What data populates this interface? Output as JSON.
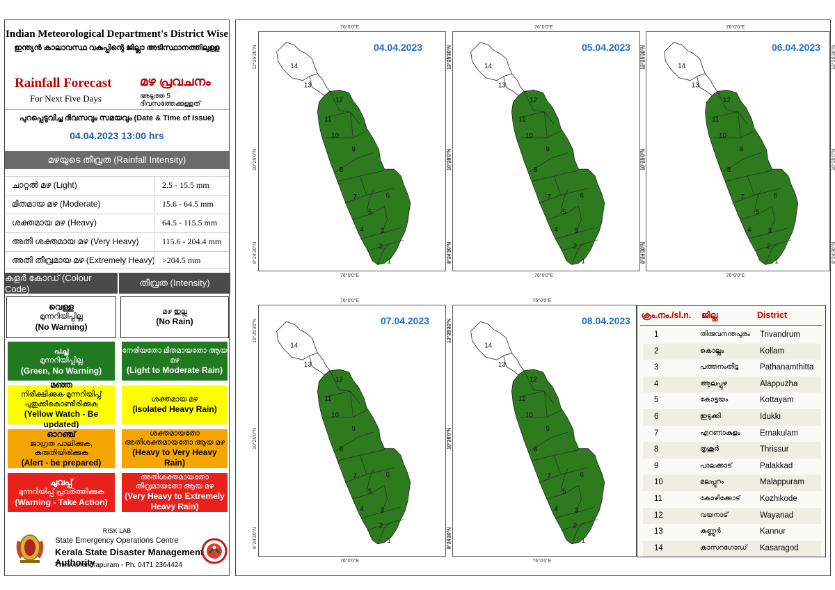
{
  "header": {
    "title_en": "Indian Meteorological Department's District Wise",
    "title_ml": "ഇന്ത്യൻ കാലാവസ്ഥ വകുപ്പിന്റെ ജില്ലാ അടിസ്ഥാനത്തിലുള്ള",
    "forecast_en": "Rainfall Forecast",
    "forecast_ml": "മഴ പ്രവചനം",
    "next_days_en": "For Next Five Days",
    "next_days_ml": "അടുത്ത 5 ദിവസത്തേക്കുള്ളത്",
    "issue_label": "പുറപ്പെടുവിച്ച ദിവസവും സമയവും (Date & Time of Issue)",
    "issue_value": "04.04.2023 13:00 hrs"
  },
  "intensity": {
    "heading": "മഴയുടെ തീവ്രത (Rainfall Intensity)",
    "rows": [
      {
        "label": "ചാറ്റൽ മഴ (Light)",
        "range": "2.5 - 15.5 mm"
      },
      {
        "label": "മിതമായ മഴ (Moderate)",
        "range": "15.6 - 64.5 mm"
      },
      {
        "label": "ശക്തമായ മഴ (Heavy)",
        "range": "64.5 - 115.5 mm"
      },
      {
        "label": "അതി ശക്തമായ മഴ (Very Heavy)",
        "range": "115.6 - 204.4 mm"
      },
      {
        "label": "അതി തീവ്രമായ മഴ (Extremely Heavy)",
        "range": ">204.5 mm"
      }
    ]
  },
  "colour_code": {
    "head_left": "കളർ കോഡ് (Colour Code)",
    "head_right": "തീവ്രത (Intensity)",
    "rows": [
      {
        "color": "#ffffff",
        "fg": "#000000",
        "l1": "വെള്ള",
        "l2": "മുന്നറിയിപ്പില്ല",
        "l3": "(No Warning)",
        "r1": "മഴ ഇല്ല",
        "r2": "(No Rain)"
      },
      {
        "color": "#217a21",
        "fg": "#ffffff",
        "l1": "പച്ച",
        "l2": "മുന്നറിയിപ്പില്ല",
        "l3": "(Green, No Warning)",
        "r1": "നേരിയതോ മിതമായതോ ആയ മഴ",
        "r2": "(Light to Moderate Rain)"
      },
      {
        "color": "#ffff00",
        "fg": "#000000",
        "l1": "മഞ്ഞ",
        "l2": "നിരീക്ഷിക്കുക-മുന്നറിയിപ്പ് പുതുക്കികൊണ്ടിരിക്കുക",
        "l3": "(Yellow Watch - Be updated)",
        "r1": "ശക്തമായ മഴ",
        "r2": "(Isolated Heavy Rain)"
      },
      {
        "color": "#f5a500",
        "fg": "#000000",
        "l1": "ഓറഞ്ച്",
        "l2": "ജാഗ്രത പാലിക്കുക, കരുതിയിരിക്കുക",
        "l3": "(Alert - be prepared)",
        "r1": "ശക്തമായതോ അതിശക്തമായതോ ആയ മഴ",
        "r2": "(Heavy to Very Heavy Rain)"
      },
      {
        "color": "#e8211c",
        "fg": "#ffffff",
        "l1": "ചുവപ്പ്",
        "l2": "മുന്നറിയിപ്പ് പ്രവർത്തിക്കുക",
        "l3": "(Warning - Take Action)",
        "r1": "അതിശക്തമായതോ തീവ്രമായതോ ആയ മഴ",
        "r2": "(Very Heavy to Extremely Heavy Rain)"
      }
    ]
  },
  "footer": {
    "lab": "RISK LAB",
    "centre": "State Emergency Operations Centre",
    "authority": "Kerala State Disaster Management Authority",
    "address": "Thiruvananthapuram - Ph: 0471 2364424"
  },
  "maps": [
    {
      "date": "04.04.2023"
    },
    {
      "date": "05.04.2023"
    },
    {
      "date": "06.04.2023"
    },
    {
      "date": "07.04.2023"
    },
    {
      "date": "08.04.2023"
    }
  ],
  "map_labels": {
    "lon": "76°0'0\"E",
    "lat_top": "12°25'30\"N",
    "lat_mid": "10°25'0\"N",
    "lat_bot": "8°24'30\"N"
  },
  "map_colors": {
    "green": "#2d7a1f",
    "white": "#ffffff",
    "border": "#222222"
  },
  "district_table": {
    "head_no": "ക്രം.നം./sl.n.",
    "head_ml": "ജില്ല",
    "head_en": "District",
    "rows": [
      {
        "no": "1",
        "ml": "തിരുവനന്തപുരം",
        "en": "Trivandrum"
      },
      {
        "no": "2",
        "ml": "കൊല്ലം",
        "en": "Kollam"
      },
      {
        "no": "3",
        "ml": "പത്തനംതിട്ട",
        "en": "Pathanamthitta"
      },
      {
        "no": "4",
        "ml": "ആലപ്പുഴ",
        "en": "Alappuzha"
      },
      {
        "no": "5",
        "ml": "കോട്ടയം",
        "en": "Kottayam"
      },
      {
        "no": "6",
        "ml": "ഇടുക്കി",
        "en": "Idukki"
      },
      {
        "no": "7",
        "ml": "എറണാകുളം",
        "en": "Ernakulam"
      },
      {
        "no": "8",
        "ml": "തൃശൂർ",
        "en": "Thrissur"
      },
      {
        "no": "9",
        "ml": "പാലക്കാട്",
        "en": "Palakkad"
      },
      {
        "no": "10",
        "ml": "മലപ്പുറം",
        "en": "Malappuram"
      },
      {
        "no": "11",
        "ml": "കോഴിക്കോട്",
        "en": "Kozhikode"
      },
      {
        "no": "12",
        "ml": "വയനാട്",
        "en": "Wayanad"
      },
      {
        "no": "13",
        "ml": "കണ്ണൂർ",
        "en": "Kannur"
      },
      {
        "no": "14",
        "ml": "കാസറഗോഡ്",
        "en": "Kasaragod"
      }
    ]
  }
}
